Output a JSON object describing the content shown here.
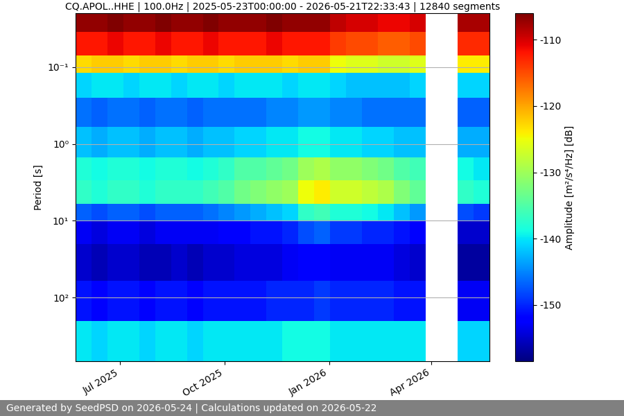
{
  "chart_data": {
    "type": "heatmap",
    "title": "CQ.APOL..HHE | 100.0Hz | 2025-05-23T00:00:00 - 2026-05-21T22:33:43 | 12840 segments",
    "y_label": "Period [s]",
    "colorbar_label": "Amplitude [m²/s⁴/Hz] [dB]",
    "footer": "Generated by SeedPSD on 2026-05-24 | Calculations updated on 2026-05-22",
    "x": [
      "2025-05-23",
      "2025-06-06",
      "2025-06-20",
      "2025-07-04",
      "2025-07-18",
      "2025-08-01",
      "2025-08-15",
      "2025-08-29",
      "2025-09-12",
      "2025-09-26",
      "2025-10-10",
      "2025-10-24",
      "2025-11-07",
      "2025-11-21",
      "2025-12-05",
      "2025-12-19",
      "2026-01-02",
      "2026-01-16",
      "2026-01-30",
      "2026-02-13",
      "2026-02-27",
      "2026-03-13",
      "2026-03-27",
      "2026-04-10",
      "2026-04-24",
      "2026-05-08",
      "2026-05-21T22:33:43"
    ],
    "y": [
      0.02,
      0.035,
      0.07,
      0.12,
      0.25,
      0.6,
      1.5,
      3,
      6,
      10,
      20,
      60,
      200,
      670
    ],
    "cells": [
      [
        -107,
        -107,
        -106,
        -107,
        -107,
        -106,
        -107,
        -107,
        -106,
        -107,
        -107,
        -107,
        -106,
        -107,
        -107,
        -107,
        -109,
        -110,
        -110,
        -111,
        -111,
        -110,
        null,
        null,
        -108,
        -108
      ],
      [
        -112,
        -112,
        -111,
        -112,
        -112,
        -111,
        -112,
        -112,
        -111,
        -112,
        -112,
        -112,
        -111,
        -112,
        -112,
        -112,
        -114,
        -115,
        -115,
        -116,
        -116,
        -115,
        null,
        null,
        -113,
        -113
      ],
      [
        -123,
        -122,
        -122,
        -123,
        -122,
        -122,
        -123,
        -122,
        -122,
        -123,
        -122,
        -122,
        -122,
        -123,
        -122,
        -122,
        -125,
        -126,
        -126,
        -127,
        -127,
        -126,
        null,
        null,
        -124,
        -124
      ],
      [
        -141,
        -140,
        -140,
        -141,
        -140,
        -140,
        -141,
        -140,
        -140,
        -141,
        -140,
        -140,
        -140,
        -141,
        -140,
        -140,
        -141,
        -142,
        -142,
        -142,
        -142,
        -141,
        null,
        null,
        -141,
        -141
      ],
      [
        -146,
        -147,
        -146,
        -146,
        -147,
        -146,
        -146,
        -147,
        -146,
        -146,
        -146,
        -146,
        -145,
        -145,
        -144,
        -144,
        -145,
        -145,
        -146,
        -146,
        -146,
        -146,
        null,
        null,
        -147,
        -147
      ],
      [
        -142,
        -143,
        -142,
        -142,
        -143,
        -142,
        -142,
        -143,
        -142,
        -142,
        -141,
        -141,
        -140,
        -140,
        -139,
        -139,
        -140,
        -140,
        -141,
        -141,
        -142,
        -142,
        null,
        null,
        -143,
        -143
      ],
      [
        -138,
        -139,
        -138,
        -138,
        -139,
        -138,
        -138,
        -139,
        -138,
        -137,
        -135,
        -135,
        -134,
        -133,
        -130,
        -129,
        -131,
        -131,
        -132,
        -133,
        -135,
        -136,
        null,
        null,
        -139,
        -140
      ],
      [
        -137,
        -138,
        -137,
        -137,
        -138,
        -137,
        -137,
        -137,
        -136,
        -135,
        -133,
        -132,
        -131,
        -130,
        -125,
        -124,
        -127,
        -127,
        -128,
        -129,
        -132,
        -134,
        null,
        null,
        -137,
        -138
      ],
      [
        -147,
        -148,
        -147,
        -147,
        -148,
        -147,
        -147,
        -147,
        -146,
        -145,
        -144,
        -143,
        -142,
        -141,
        -137,
        -136,
        -138,
        -138,
        -139,
        -140,
        -142,
        -144,
        null,
        null,
        -148,
        -149
      ],
      [
        -153,
        -154,
        -153,
        -153,
        -154,
        -153,
        -153,
        -153,
        -153,
        -152,
        -152,
        -151,
        -151,
        -150,
        -148,
        -147,
        -149,
        -149,
        -150,
        -150,
        -151,
        -152,
        null,
        null,
        -155,
        -155
      ],
      [
        -155,
        -156,
        -155,
        -155,
        -156,
        -156,
        -155,
        -156,
        -155,
        -155,
        -154,
        -154,
        -154,
        -153,
        -152,
        -152,
        -153,
        -153,
        -153,
        -153,
        -154,
        -155,
        null,
        null,
        -157,
        -157
      ],
      [
        -151,
        -152,
        -151,
        -151,
        -152,
        -151,
        -151,
        -152,
        -151,
        -151,
        -151,
        -151,
        -150,
        -150,
        -150,
        -149,
        -150,
        -150,
        -150,
        -150,
        -151,
        -151,
        null,
        null,
        -153,
        -153
      ],
      [
        -140,
        -141,
        -140,
        -140,
        -141,
        -140,
        -140,
        -141,
        -140,
        -140,
        -140,
        -140,
        -140,
        -139,
        -139,
        -139,
        -140,
        -140,
        -140,
        -140,
        -140,
        -140,
        null,
        null,
        -141,
        -141
      ]
    ],
    "xlim": [
      "2025-05-23T00:00:00",
      "2026-05-21T22:33:43"
    ],
    "xticks": [
      {
        "value": "2025-07-01",
        "label": "Jul 2025"
      },
      {
        "value": "2025-10-01",
        "label": "Oct 2025"
      },
      {
        "value": "2026-01-01",
        "label": "Jan 2026"
      },
      {
        "value": "2026-04-01",
        "label": "Apr 2026"
      }
    ],
    "ylim": [
      670,
      0.02
    ],
    "yticks": [
      {
        "value": 0.1,
        "label": "10⁻¹"
      },
      {
        "value": 1,
        "label": "10⁰"
      },
      {
        "value": 10,
        "label": "10¹"
      },
      {
        "value": 100,
        "label": "10²"
      }
    ],
    "log": "y",
    "grid": true,
    "colorbar_range": [
      -158.5,
      -106
    ],
    "colorbar_ticks": [
      -150,
      -140,
      -130,
      -120,
      -110
    ]
  }
}
